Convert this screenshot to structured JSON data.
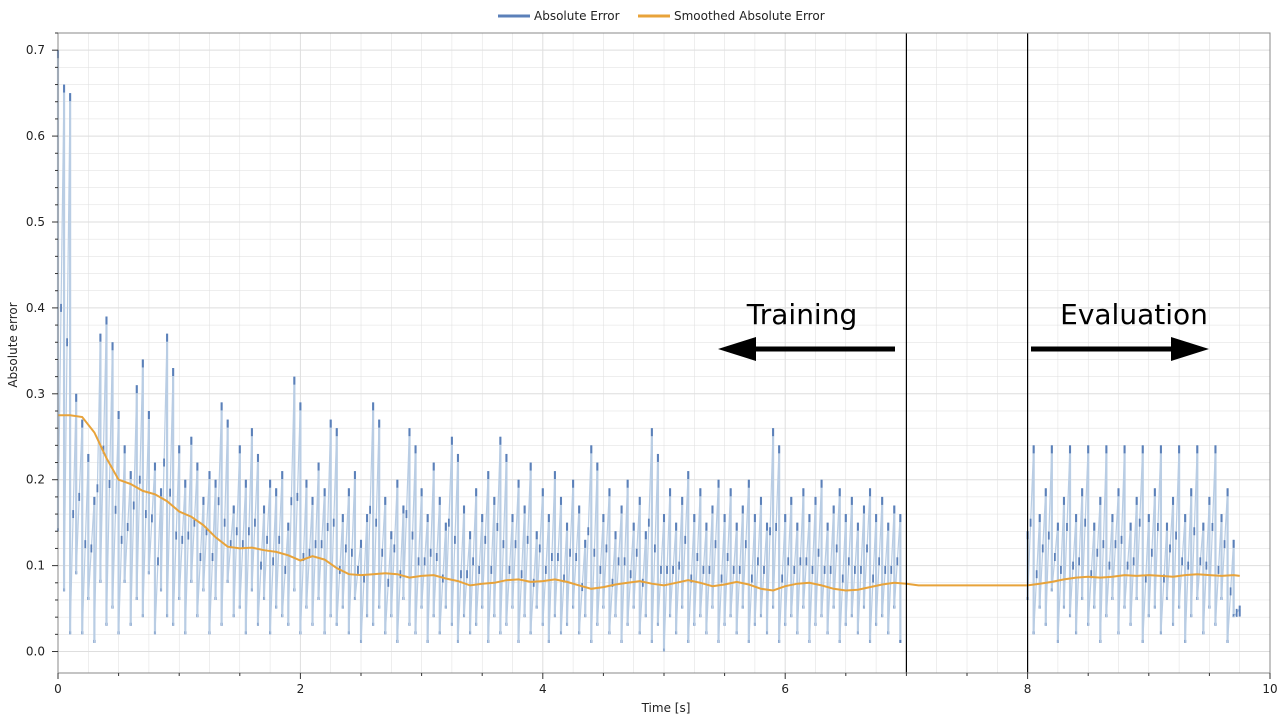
{
  "chart_data": {
    "type": "line",
    "xlabel": "Time [s]",
    "ylabel": "Absolute error",
    "xlim": [
      0,
      10
    ],
    "ylim": [
      -0.025,
      0.72
    ],
    "x_ticks": [
      0,
      2,
      4,
      6,
      8,
      10
    ],
    "y_ticks": [
      0.0,
      0.1,
      0.2,
      0.3,
      0.4,
      0.5,
      0.6,
      0.7
    ],
    "grid": true,
    "legend": {
      "placement": "top-center",
      "entries": [
        "Absolute Error",
        "Smoothed Absolute Error"
      ]
    },
    "colors": {
      "raw": "#5b80b9",
      "raw_fill": "#b9cde4",
      "smoothed": "#e8a33a",
      "grid": "#dedede",
      "frame": "#888888",
      "marker_line": "#000000"
    },
    "annotations": {
      "training_label": "Training",
      "evaluation_label": "Evaluation"
    },
    "vertical_lines_x": [
      7,
      8
    ],
    "series": [
      {
        "name": "Absolute Error",
        "kind": "raw",
        "segments": [
          {
            "x": [
              0.0,
              0.05,
              0.1,
              0.15,
              0.2,
              0.25,
              0.3,
              0.35,
              0.4,
              0.45,
              0.5,
              0.55,
              0.6,
              0.65,
              0.7,
              0.75,
              0.8,
              0.85,
              0.9,
              0.95,
              1.0,
              1.05,
              1.1,
              1.15,
              1.2,
              1.25,
              1.3,
              1.35,
              1.4,
              1.45,
              1.5,
              1.55,
              1.6,
              1.65,
              1.7,
              1.75,
              1.8,
              1.85,
              1.9,
              1.95,
              2.0,
              2.05,
              2.1,
              2.15,
              2.2,
              2.25,
              2.3,
              2.35,
              2.4,
              2.45,
              2.5,
              2.55,
              2.6,
              2.65,
              2.7,
              2.75,
              2.8,
              2.85,
              2.9,
              2.95,
              3.0,
              3.05,
              3.1,
              3.15,
              3.2,
              3.25,
              3.3,
              3.35,
              3.4,
              3.45,
              3.5,
              3.55,
              3.6,
              3.65,
              3.7,
              3.75,
              3.8,
              3.85,
              3.9,
              3.95,
              4.0,
              4.05,
              4.1,
              4.15,
              4.2,
              4.25,
              4.3,
              4.35,
              4.4,
              4.45,
              4.5,
              4.55,
              4.6,
              4.65,
              4.7,
              4.75,
              4.8,
              4.85,
              4.9,
              4.95,
              5.0,
              5.05,
              5.1,
              5.15,
              5.2,
              5.25,
              5.3,
              5.35,
              5.4,
              5.45,
              5.5,
              5.55,
              5.6,
              5.65,
              5.7,
              5.75,
              5.8,
              5.85,
              5.9,
              5.95,
              6.0,
              6.05,
              6.1,
              6.15,
              6.2,
              6.25,
              6.3,
              6.35,
              6.4,
              6.45,
              6.5,
              6.55,
              6.6,
              6.65,
              6.7,
              6.75,
              6.8,
              6.85,
              6.9,
              6.95
            ],
            "low": [
              0.14,
              0.07,
              0.02,
              0.09,
              0.02,
              0.06,
              0.01,
              0.08,
              0.03,
              0.05,
              0.02,
              0.08,
              0.03,
              0.06,
              0.04,
              0.09,
              0.02,
              0.07,
              0.04,
              0.03,
              0.06,
              0.02,
              0.08,
              0.04,
              0.07,
              0.02,
              0.06,
              0.03,
              0.08,
              0.04,
              0.05,
              0.02,
              0.07,
              0.03,
              0.06,
              0.02,
              0.05,
              0.04,
              0.03,
              0.07,
              0.02,
              0.05,
              0.03,
              0.06,
              0.02,
              0.04,
              0.03,
              0.05,
              0.02,
              0.06,
              0.01,
              0.04,
              0.03,
              0.05,
              0.02,
              0.04,
              0.01,
              0.06,
              0.03,
              0.02,
              0.05,
              0.01,
              0.04,
              0.02,
              0.05,
              0.03,
              0.01,
              0.04,
              0.02,
              0.03,
              0.05,
              0.01,
              0.04,
              0.02,
              0.03,
              0.05,
              0.01,
              0.04,
              0.02,
              0.05,
              0.03,
              0.01,
              0.04,
              0.02,
              0.03,
              0.05,
              0.02,
              0.04,
              0.01,
              0.03,
              0.05,
              0.02,
              0.04,
              0.01,
              0.03,
              0.05,
              0.02,
              0.04,
              0.01,
              0.03,
              0.0,
              0.04,
              0.02,
              0.05,
              0.01,
              0.03,
              0.04,
              0.02,
              0.05,
              0.01,
              0.03,
              0.04,
              0.02,
              0.05,
              0.01,
              0.03,
              0.04,
              0.02,
              0.05,
              0.01,
              0.03,
              0.04,
              0.02,
              0.05,
              0.01,
              0.03,
              0.04,
              0.02,
              0.05,
              0.01,
              0.03,
              0.04,
              0.02,
              0.05,
              0.01,
              0.03,
              0.04,
              0.02,
              0.05,
              0.01
            ],
            "high": [
              0.7,
              0.66,
              0.65,
              0.3,
              0.27,
              0.23,
              0.18,
              0.37,
              0.39,
              0.36,
              0.28,
              0.24,
              0.21,
              0.31,
              0.34,
              0.28,
              0.22,
              0.19,
              0.37,
              0.33,
              0.24,
              0.2,
              0.25,
              0.22,
              0.18,
              0.21,
              0.2,
              0.29,
              0.27,
              0.17,
              0.24,
              0.2,
              0.26,
              0.23,
              0.17,
              0.2,
              0.19,
              0.21,
              0.15,
              0.32,
              0.29,
              0.2,
              0.18,
              0.22,
              0.19,
              0.27,
              0.26,
              0.16,
              0.19,
              0.21,
              0.13,
              0.16,
              0.29,
              0.27,
              0.18,
              0.14,
              0.2,
              0.17,
              0.26,
              0.24,
              0.19,
              0.16,
              0.22,
              0.18,
              0.15,
              0.25,
              0.23,
              0.17,
              0.14,
              0.19,
              0.16,
              0.21,
              0.18,
              0.25,
              0.23,
              0.16,
              0.2,
              0.17,
              0.22,
              0.14,
              0.19,
              0.16,
              0.21,
              0.18,
              0.15,
              0.2,
              0.17,
              0.13,
              0.24,
              0.22,
              0.16,
              0.19,
              0.14,
              0.17,
              0.2,
              0.15,
              0.18,
              0.14,
              0.26,
              0.23,
              0.16,
              0.19,
              0.15,
              0.18,
              0.21,
              0.16,
              0.19,
              0.15,
              0.17,
              0.2,
              0.16,
              0.19,
              0.15,
              0.17,
              0.2,
              0.16,
              0.18,
              0.15,
              0.26,
              0.24,
              0.16,
              0.18,
              0.15,
              0.19,
              0.16,
              0.18,
              0.2,
              0.15,
              0.17,
              0.19,
              0.16,
              0.18,
              0.15,
              0.17,
              0.19,
              0.16,
              0.18,
              0.15,
              0.17,
              0.16
            ]
          },
          {
            "x": [
              8.0,
              8.05,
              8.1,
              8.15,
              8.2,
              8.25,
              8.3,
              8.35,
              8.4,
              8.45,
              8.5,
              8.55,
              8.6,
              8.65,
              8.7,
              8.75,
              8.8,
              8.85,
              8.9,
              8.95,
              9.0,
              9.05,
              9.1,
              9.15,
              9.2,
              9.25,
              9.3,
              9.35,
              9.4,
              9.45,
              9.5,
              9.55,
              9.6,
              9.65,
              9.7,
              9.75
            ],
            "low": [
              0.06,
              0.02,
              0.05,
              0.03,
              0.07,
              0.01,
              0.05,
              0.04,
              0.02,
              0.06,
              0.03,
              0.05,
              0.01,
              0.04,
              0.06,
              0.02,
              0.05,
              0.03,
              0.06,
              0.01,
              0.04,
              0.05,
              0.02,
              0.06,
              0.03,
              0.05,
              0.01,
              0.04,
              0.06,
              0.02,
              0.05,
              0.03,
              0.06,
              0.01,
              0.04,
              0.05
            ],
            "high": [
              0.14,
              0.24,
              0.16,
              0.19,
              0.24,
              0.15,
              0.18,
              0.24,
              0.16,
              0.19,
              0.24,
              0.15,
              0.18,
              0.24,
              0.16,
              0.19,
              0.24,
              0.15,
              0.18,
              0.24,
              0.16,
              0.19,
              0.24,
              0.15,
              0.18,
              0.24,
              0.16,
              0.19,
              0.24,
              0.15,
              0.18,
              0.24,
              0.16,
              0.19,
              0.13,
              0.05
            ]
          }
        ]
      },
      {
        "name": "Smoothed Absolute Error",
        "kind": "smoothed",
        "x": [
          0.0,
          0.1,
          0.2,
          0.3,
          0.4,
          0.5,
          0.6,
          0.7,
          0.8,
          0.9,
          1.0,
          1.1,
          1.2,
          1.3,
          1.4,
          1.5,
          1.6,
          1.7,
          1.8,
          1.9,
          2.0,
          2.1,
          2.2,
          2.3,
          2.4,
          2.5,
          2.6,
          2.7,
          2.8,
          2.9,
          3.0,
          3.1,
          3.2,
          3.3,
          3.4,
          3.5,
          3.6,
          3.7,
          3.8,
          3.9,
          4.0,
          4.1,
          4.2,
          4.3,
          4.4,
          4.5,
          4.6,
          4.7,
          4.8,
          4.9,
          5.0,
          5.1,
          5.2,
          5.3,
          5.4,
          5.5,
          5.6,
          5.7,
          5.8,
          5.9,
          6.0,
          6.1,
          6.2,
          6.3,
          6.4,
          6.5,
          6.6,
          6.7,
          6.8,
          6.9,
          7.0,
          7.1,
          7.2,
          7.3,
          7.4,
          7.5,
          7.6,
          7.7,
          7.8,
          7.9,
          8.0,
          8.1,
          8.2,
          8.3,
          8.4,
          8.5,
          8.6,
          8.7,
          8.8,
          8.9,
          9.0,
          9.1,
          9.2,
          9.3,
          9.4,
          9.5,
          9.6,
          9.7,
          9.75
        ],
        "y": [
          0.275,
          0.275,
          0.273,
          0.255,
          0.225,
          0.2,
          0.195,
          0.187,
          0.183,
          0.175,
          0.163,
          0.157,
          0.147,
          0.133,
          0.122,
          0.12,
          0.121,
          0.118,
          0.116,
          0.112,
          0.106,
          0.111,
          0.107,
          0.097,
          0.09,
          0.089,
          0.09,
          0.091,
          0.09,
          0.086,
          0.088,
          0.089,
          0.085,
          0.082,
          0.077,
          0.079,
          0.08,
          0.083,
          0.084,
          0.081,
          0.082,
          0.084,
          0.081,
          0.077,
          0.073,
          0.075,
          0.078,
          0.08,
          0.082,
          0.079,
          0.077,
          0.08,
          0.083,
          0.08,
          0.076,
          0.078,
          0.081,
          0.078,
          0.073,
          0.071,
          0.076,
          0.079,
          0.08,
          0.077,
          0.073,
          0.071,
          0.072,
          0.075,
          0.078,
          0.08,
          0.079,
          0.077,
          0.077,
          0.077,
          0.077,
          0.077,
          0.077,
          0.077,
          0.077,
          0.077,
          0.077,
          0.079,
          0.081,
          0.084,
          0.086,
          0.087,
          0.086,
          0.087,
          0.089,
          0.088,
          0.089,
          0.088,
          0.087,
          0.089,
          0.09,
          0.089,
          0.088,
          0.089,
          0.088
        ]
      }
    ]
  }
}
